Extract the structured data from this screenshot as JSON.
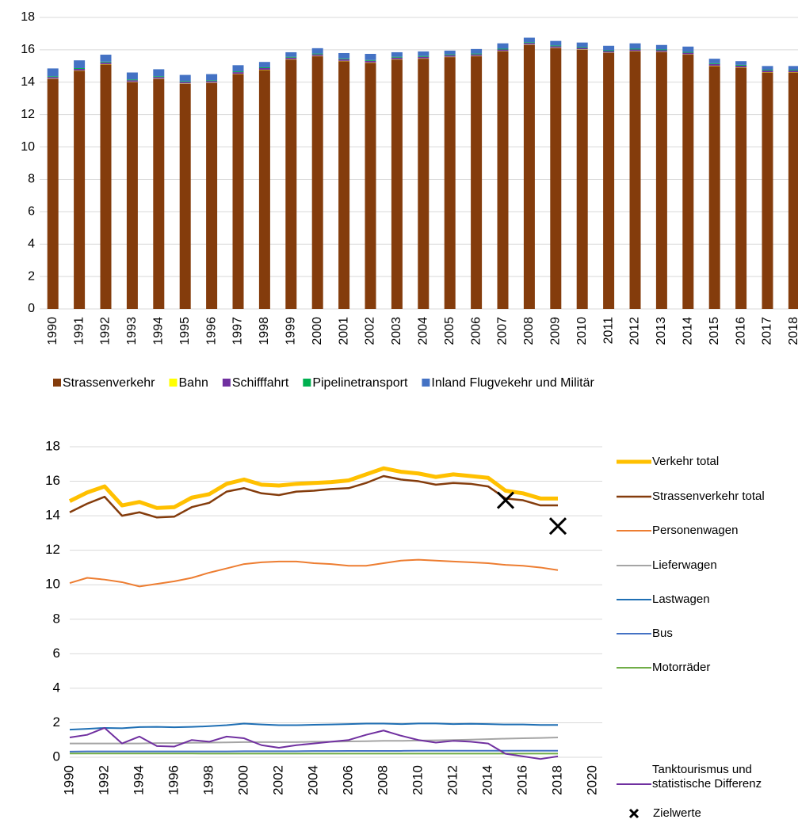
{
  "chart_data": [
    {
      "type": "stacked_bar",
      "categories": [
        "1990",
        "1991",
        "1992",
        "1993",
        "1994",
        "1995",
        "1996",
        "1997",
        "1998",
        "1999",
        "2000",
        "2001",
        "2002",
        "2003",
        "2004",
        "2005",
        "2006",
        "2007",
        "2008",
        "2009",
        "2010",
        "2011",
        "2012",
        "2013",
        "2014",
        "2015",
        "2016",
        "2017",
        "2018"
      ],
      "series": [
        {
          "name": "Strassenverkehr",
          "color": "#843c0c",
          "values": [
            14.2,
            14.7,
            15.1,
            14.0,
            14.2,
            13.9,
            13.95,
            14.5,
            14.75,
            15.4,
            15.6,
            15.3,
            15.2,
            15.4,
            15.45,
            15.55,
            15.6,
            15.9,
            16.3,
            16.1,
            16.0,
            15.8,
            15.9,
            15.85,
            15.7,
            15.0,
            14.9,
            14.6,
            14.6
          ]
        },
        {
          "name": "Bahn",
          "color": "#ffff00",
          "values": [
            0.02,
            0.02,
            0.02,
            0.02,
            0.02,
            0.02,
            0.02,
            0.02,
            0.02,
            0.02,
            0.02,
            0.02,
            0.02,
            0.02,
            0.02,
            0.02,
            0.02,
            0.02,
            0.02,
            0.02,
            0.02,
            0.02,
            0.02,
            0.02,
            0.02,
            0.02,
            0.02,
            0.02,
            0.02
          ]
        },
        {
          "name": "Schifffahrt",
          "color": "#7030a0",
          "values": [
            0.1,
            0.1,
            0.1,
            0.1,
            0.1,
            0.1,
            0.1,
            0.1,
            0.1,
            0.1,
            0.1,
            0.1,
            0.1,
            0.1,
            0.1,
            0.1,
            0.1,
            0.1,
            0.1,
            0.1,
            0.1,
            0.1,
            0.1,
            0.1,
            0.1,
            0.1,
            0.1,
            0.1,
            0.1
          ]
        },
        {
          "name": "Pipelinetransport",
          "color": "#00b050",
          "values": [
            0.05,
            0.05,
            0.05,
            0.05,
            0.05,
            0.05,
            0.05,
            0.05,
            0.05,
            0.05,
            0.05,
            0.05,
            0.05,
            0.05,
            0.05,
            0.05,
            0.05,
            0.05,
            0.05,
            0.05,
            0.05,
            0.05,
            0.05,
            0.05,
            0.05,
            0.05,
            0.05,
            0.05,
            0.05
          ]
        },
        {
          "name": "Inland Flugvekehr und Militär",
          "color": "#4472c4",
          "values": [
            0.48,
            0.48,
            0.43,
            0.43,
            0.43,
            0.38,
            0.38,
            0.38,
            0.33,
            0.28,
            0.33,
            0.33,
            0.38,
            0.28,
            0.28,
            0.23,
            0.28,
            0.33,
            0.28,
            0.28,
            0.28,
            0.28,
            0.33,
            0.28,
            0.33,
            0.28,
            0.23,
            0.23,
            0.23
          ]
        }
      ],
      "ylim": [
        0,
        18
      ],
      "yticks": [
        0,
        2,
        4,
        6,
        8,
        10,
        12,
        14,
        16,
        18
      ],
      "grid": true,
      "legend": "bottom"
    },
    {
      "type": "line",
      "x": [
        1990,
        1991,
        1992,
        1993,
        1994,
        1995,
        1996,
        1997,
        1998,
        1999,
        2000,
        2001,
        2002,
        2003,
        2004,
        2005,
        2006,
        2007,
        2008,
        2009,
        2010,
        2011,
        2012,
        2013,
        2014,
        2015,
        2016,
        2017,
        2018
      ],
      "series": [
        {
          "name": "Verkehr total",
          "color": "#ffc000",
          "width": 5,
          "values": [
            14.85,
            15.35,
            15.7,
            14.6,
            14.8,
            14.45,
            14.5,
            15.05,
            15.25,
            15.85,
            16.1,
            15.8,
            15.75,
            15.85,
            15.9,
            15.95,
            16.05,
            16.4,
            16.75,
            16.55,
            16.45,
            16.25,
            16.4,
            16.3,
            16.2,
            15.45,
            15.3,
            15.0,
            15.0
          ]
        },
        {
          "name": "Strassenverkehr total",
          "color": "#843c0c",
          "width": 2.5,
          "values": [
            14.2,
            14.7,
            15.1,
            14.0,
            14.2,
            13.9,
            13.95,
            14.5,
            14.75,
            15.4,
            15.6,
            15.3,
            15.2,
            15.4,
            15.45,
            15.55,
            15.6,
            15.9,
            16.3,
            16.1,
            16.0,
            15.8,
            15.9,
            15.85,
            15.7,
            15.0,
            14.9,
            14.6,
            14.6
          ]
        },
        {
          "name": "Personenwagen",
          "color": "#ed7d31",
          "width": 2,
          "values": [
            10.1,
            10.4,
            10.3,
            10.15,
            9.9,
            10.05,
            10.2,
            10.4,
            10.7,
            10.95,
            11.2,
            11.3,
            11.35,
            11.35,
            11.25,
            11.2,
            11.1,
            11.1,
            11.25,
            11.4,
            11.45,
            11.4,
            11.35,
            11.3,
            11.25,
            11.15,
            11.1,
            11.0,
            10.85
          ]
        },
        {
          "name": "Lieferwagen",
          "color": "#a5a5a5",
          "width": 2,
          "values": [
            0.8,
            0.8,
            0.8,
            0.8,
            0.8,
            0.82,
            0.82,
            0.84,
            0.85,
            0.86,
            0.88,
            0.88,
            0.88,
            0.88,
            0.9,
            0.9,
            0.92,
            0.93,
            0.95,
            0.95,
            0.97,
            0.98,
            1.0,
            1.02,
            1.05,
            1.08,
            1.1,
            1.12,
            1.15
          ]
        },
        {
          "name": "Lastwagen",
          "color": "#1f6fb4",
          "width": 2,
          "values": [
            1.6,
            1.65,
            1.7,
            1.68,
            1.75,
            1.76,
            1.74,
            1.76,
            1.8,
            1.86,
            1.95,
            1.9,
            1.86,
            1.86,
            1.88,
            1.9,
            1.92,
            1.95,
            1.95,
            1.92,
            1.96,
            1.96,
            1.92,
            1.94,
            1.92,
            1.9,
            1.9,
            1.87,
            1.87
          ]
        },
        {
          "name": "Bus",
          "color": "#4472c4",
          "width": 2,
          "values": [
            0.33,
            0.34,
            0.34,
            0.34,
            0.34,
            0.34,
            0.34,
            0.34,
            0.34,
            0.34,
            0.35,
            0.35,
            0.35,
            0.35,
            0.36,
            0.36,
            0.37,
            0.37,
            0.37,
            0.37,
            0.38,
            0.38,
            0.38,
            0.38,
            0.38,
            0.38,
            0.38,
            0.38,
            0.38
          ]
        },
        {
          "name": "Motorräder",
          "color": "#70ad47",
          "width": 2,
          "values": [
            0.22,
            0.22,
            0.22,
            0.22,
            0.22,
            0.22,
            0.22,
            0.22,
            0.21,
            0.21,
            0.21,
            0.21,
            0.21,
            0.21,
            0.21,
            0.21,
            0.21,
            0.21,
            0.21,
            0.21,
            0.21,
            0.21,
            0.21,
            0.21,
            0.21,
            0.21,
            0.21,
            0.21,
            0.21
          ]
        },
        {
          "name": "Tanktourismus und statistische Differenz",
          "color": "#7030a0",
          "width": 2,
          "values": [
            1.15,
            1.3,
            1.7,
            0.8,
            1.2,
            0.65,
            0.62,
            1.0,
            0.9,
            1.2,
            1.1,
            0.7,
            0.55,
            0.7,
            0.8,
            0.9,
            1.0,
            1.3,
            1.55,
            1.25,
            1.0,
            0.85,
            0.95,
            0.9,
            0.8,
            0.2,
            0.05,
            -0.1,
            0.05
          ]
        },
        {
          "name": "Zielwerte",
          "color": "#000000",
          "marker": "x",
          "x": [
            2015,
            2018
          ],
          "values": [
            14.9,
            13.4
          ]
        }
      ],
      "xlim": [
        1990,
        2020
      ],
      "xticks": [
        1990,
        1992,
        1994,
        1996,
        1998,
        2000,
        2002,
        2004,
        2006,
        2008,
        2010,
        2012,
        2014,
        2016,
        2018,
        2020
      ],
      "ylim": [
        0,
        18
      ],
      "yticks": [
        0,
        2,
        4,
        6,
        8,
        10,
        12,
        14,
        16,
        18
      ],
      "grid": true,
      "legend": "right"
    }
  ]
}
